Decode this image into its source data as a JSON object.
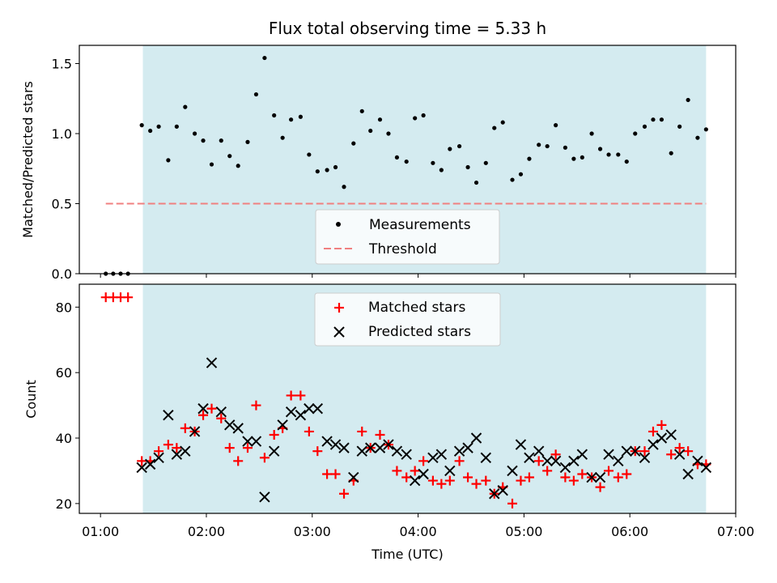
{
  "chart_data": [
    {
      "type": "scatter",
      "title": "Flux total observing time = 5.33 h",
      "ylabel": "Matched/Predicted stars",
      "xlabel": "",
      "xlim": [
        0.8,
        7.0
      ],
      "ylim": [
        0,
        1.63
      ],
      "yticks": [
        0.0,
        0.5,
        1.0,
        1.5
      ],
      "ytick_labels": [
        "0.0",
        "0.5",
        "1.0",
        "1.5"
      ],
      "xticks": [
        1,
        2,
        3,
        4,
        5,
        6,
        7
      ],
      "shaded_span": [
        1.4,
        6.72
      ],
      "shaded_color": "#d4ebf0",
      "legend_position": "lower center",
      "threshold": {
        "name": "Threshold",
        "y": 0.5,
        "x_range": [
          1.05,
          6.72
        ],
        "color": "#f08080"
      },
      "series": [
        {
          "name": "Measurements",
          "color": "#000000",
          "x": [
            1.05,
            1.12,
            1.19,
            1.26,
            1.39,
            1.47,
            1.55,
            1.64,
            1.72,
            1.8,
            1.89,
            1.97,
            2.05,
            2.14,
            2.22,
            2.3,
            2.39,
            2.47,
            2.55,
            2.64,
            2.72,
            2.8,
            2.89,
            2.97,
            3.05,
            3.14,
            3.22,
            3.3,
            3.39,
            3.47,
            3.55,
            3.64,
            3.72,
            3.8,
            3.89,
            3.97,
            4.05,
            4.14,
            4.22,
            4.3,
            4.39,
            4.47,
            4.55,
            4.64,
            4.72,
            4.8,
            4.89,
            4.97,
            5.05,
            5.14,
            5.22,
            5.3,
            5.39,
            5.47,
            5.55,
            5.64,
            5.72,
            5.8,
            5.89,
            5.97,
            6.05,
            6.14,
            6.22,
            6.3,
            6.39,
            6.47,
            6.55,
            6.64,
            6.72
          ],
          "y": [
            0.0,
            0.0,
            0.0,
            0.0,
            1.06,
            1.02,
            1.05,
            0.81,
            1.05,
            1.19,
            1.0,
            0.95,
            0.78,
            0.95,
            0.84,
            0.77,
            0.94,
            1.28,
            1.54,
            1.13,
            0.97,
            1.1,
            1.12,
            0.85,
            0.73,
            0.74,
            0.76,
            0.62,
            0.93,
            1.16,
            1.02,
            1.1,
            1.0,
            0.83,
            0.8,
            1.11,
            1.13,
            0.79,
            0.74,
            0.89,
            0.91,
            0.76,
            0.65,
            0.79,
            1.04,
            1.08,
            0.67,
            0.71,
            0.82,
            0.92,
            0.91,
            1.06,
            0.9,
            0.82,
            0.83,
            1.0,
            0.89,
            0.85,
            0.85,
            0.8,
            1.0,
            1.05,
            1.1,
            1.1,
            0.86,
            1.05,
            1.24,
            0.97,
            1.03
          ]
        }
      ]
    },
    {
      "type": "scatter",
      "title": "",
      "ylabel": "Count",
      "xlabel": "Time (UTC)",
      "xlim": [
        0.8,
        7.0
      ],
      "ylim": [
        17,
        87
      ],
      "yticks": [
        20,
        40,
        60,
        80
      ],
      "ytick_labels": [
        "20",
        "40",
        "60",
        "80"
      ],
      "xticks": [
        1,
        2,
        3,
        4,
        5,
        6,
        7
      ],
      "xtick_labels": [
        "01:00",
        "02:00",
        "03:00",
        "04:00",
        "05:00",
        "06:00",
        "07:00"
      ],
      "shaded_span": [
        1.4,
        6.72
      ],
      "shaded_color": "#d4ebf0",
      "legend_position": "upper center",
      "series": [
        {
          "name": "Matched stars",
          "color": "#ff0000",
          "x": [
            1.05,
            1.12,
            1.19,
            1.26,
            1.39,
            1.47,
            1.55,
            1.64,
            1.72,
            1.8,
            1.89,
            1.97,
            2.05,
            2.14,
            2.22,
            2.3,
            2.39,
            2.47,
            2.55,
            2.64,
            2.72,
            2.8,
            2.89,
            2.97,
            3.05,
            3.14,
            3.22,
            3.3,
            3.39,
            3.47,
            3.55,
            3.64,
            3.72,
            3.8,
            3.89,
            3.97,
            4.05,
            4.14,
            4.22,
            4.3,
            4.39,
            4.47,
            4.55,
            4.64,
            4.72,
            4.8,
            4.89,
            4.97,
            5.05,
            5.14,
            5.22,
            5.3,
            5.39,
            5.47,
            5.55,
            5.64,
            5.72,
            5.8,
            5.89,
            5.97,
            6.05,
            6.14,
            6.22,
            6.3,
            6.39,
            6.47,
            6.55,
            6.64,
            6.72
          ],
          "y": [
            83,
            83,
            83,
            83,
            33,
            33,
            36,
            38,
            37,
            43,
            42,
            47,
            49,
            46,
            37,
            33,
            37,
            50,
            34,
            41,
            43,
            53,
            53,
            42,
            36,
            29,
            29,
            23,
            27,
            42,
            37,
            41,
            38,
            30,
            28,
            30,
            33,
            27,
            26,
            27,
            33,
            28,
            26,
            27,
            23,
            25,
            20,
            27,
            28,
            33,
            30,
            35,
            28,
            27,
            29,
            28,
            25,
            30,
            28,
            29,
            36,
            36,
            42,
            44,
            35,
            37,
            36,
            32,
            32
          ]
        },
        {
          "name": "Predicted stars",
          "color": "#000000",
          "x": [
            1.39,
            1.47,
            1.55,
            1.64,
            1.72,
            1.8,
            1.89,
            1.97,
            2.05,
            2.14,
            2.22,
            2.3,
            2.39,
            2.47,
            2.55,
            2.64,
            2.72,
            2.8,
            2.89,
            2.97,
            3.05,
            3.14,
            3.22,
            3.3,
            3.39,
            3.47,
            3.55,
            3.64,
            3.72,
            3.8,
            3.89,
            3.97,
            4.05,
            4.14,
            4.22,
            4.3,
            4.39,
            4.47,
            4.55,
            4.64,
            4.72,
            4.8,
            4.89,
            4.97,
            5.05,
            5.14,
            5.22,
            5.3,
            5.39,
            5.47,
            5.55,
            5.64,
            5.72,
            5.8,
            5.89,
            5.97,
            6.05,
            6.14,
            6.22,
            6.3,
            6.39,
            6.47,
            6.55,
            6.64,
            6.72
          ],
          "y": [
            31,
            32,
            34,
            47,
            35,
            36,
            42,
            49,
            63,
            48,
            44,
            43,
            39,
            39,
            22,
            36,
            44,
            48,
            47,
            49,
            49,
            39,
            38,
            37,
            28,
            36,
            37,
            37,
            38,
            36,
            35,
            27,
            29,
            34,
            35,
            30,
            36,
            37,
            40,
            34,
            23,
            24,
            30,
            38,
            34,
            36,
            33,
            33,
            31,
            33,
            35,
            28,
            28,
            35,
            33,
            36,
            36,
            34,
            38,
            40,
            41,
            35,
            29,
            33,
            31
          ]
        }
      ]
    }
  ]
}
